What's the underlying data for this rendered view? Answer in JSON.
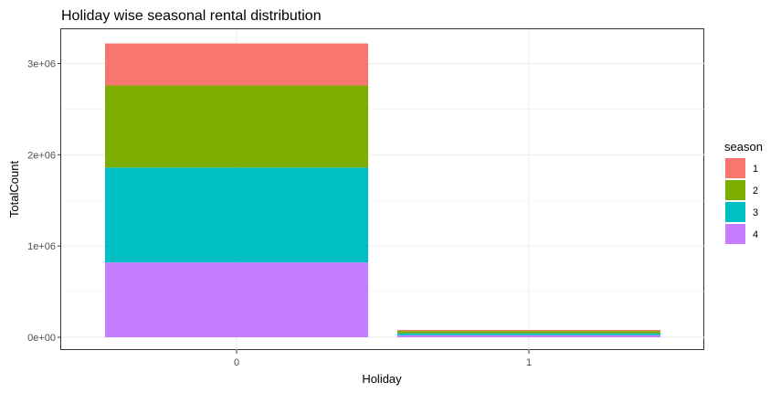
{
  "chart_data": {
    "type": "bar",
    "stacked": true,
    "title": "Holiday wise seasonal rental distribution",
    "xlabel": "Holiday",
    "ylabel": "TotalCount",
    "categories": [
      "0",
      "1"
    ],
    "ylim": [
      0,
      3250000
    ],
    "yticks": [
      0,
      1000000,
      2000000,
      3000000
    ],
    "ytick_labels": [
      "0e+00",
      "1e+06",
      "2e+06",
      "3e+06"
    ],
    "grid": true,
    "legend": {
      "title": "season",
      "position": "right"
    },
    "series": [
      {
        "name": "1",
        "color": "#F8766D",
        "values": [
          460000,
          11000
        ]
      },
      {
        "name": "2",
        "color": "#7CAE00",
        "values": [
          900000,
          25000
        ]
      },
      {
        "name": "3",
        "color": "#00BFC4",
        "values": [
          1040000,
          22000
        ]
      },
      {
        "name": "4",
        "color": "#C77CFF",
        "values": [
          820000,
          22000
        ]
      }
    ]
  }
}
